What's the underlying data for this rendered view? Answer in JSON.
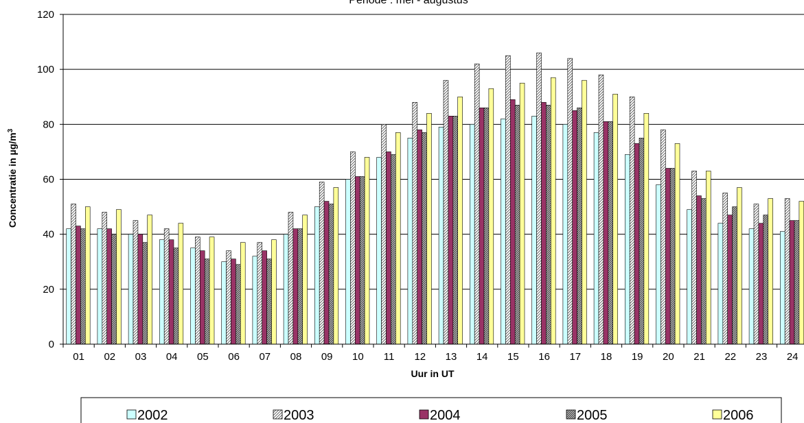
{
  "chart_data": {
    "type": "bar",
    "title": "Periode : mei - augustus",
    "xlabel": "Uur in UT",
    "ylabel": "Concentratie in µg/m",
    "ylabel_superscript": "3",
    "ylim": [
      0,
      120
    ],
    "yticks": [
      0,
      20,
      40,
      60,
      80,
      100,
      120
    ],
    "grid": "horizontal",
    "legend_position": "bottom",
    "categories": [
      "01",
      "02",
      "03",
      "04",
      "05",
      "06",
      "07",
      "08",
      "09",
      "10",
      "11",
      "12",
      "13",
      "14",
      "15",
      "16",
      "17",
      "18",
      "19",
      "20",
      "21",
      "22",
      "23",
      "24"
    ],
    "series": [
      {
        "name": "2002",
        "color": "#ccffff",
        "pattern": "solid",
        "values": [
          42,
          42,
          40,
          38,
          35,
          30,
          32,
          40,
          50,
          60,
          68,
          75,
          79,
          80,
          82,
          83,
          80,
          77,
          69,
          58,
          49,
          44,
          42,
          41
        ]
      },
      {
        "name": "2003",
        "color": "#ffffff",
        "pattern": "diagonal",
        "values": [
          51,
          48,
          45,
          42,
          39,
          34,
          37,
          48,
          59,
          70,
          80,
          88,
          96,
          102,
          105,
          106,
          104,
          98,
          90,
          78,
          63,
          55,
          51,
          53
        ]
      },
      {
        "name": "2004",
        "color": "#993366",
        "pattern": "solid",
        "values": [
          43,
          42,
          40,
          38,
          34,
          31,
          34,
          42,
          52,
          61,
          70,
          78,
          83,
          86,
          89,
          88,
          85,
          81,
          73,
          64,
          54,
          47,
          44,
          45
        ]
      },
      {
        "name": "2005",
        "color": "#808080",
        "pattern": "dense-diagonal",
        "values": [
          42,
          40,
          37,
          35,
          31,
          29,
          31,
          42,
          51,
          61,
          69,
          77,
          83,
          86,
          87,
          87,
          86,
          81,
          75,
          64,
          53,
          50,
          47,
          45
        ]
      },
      {
        "name": "2006",
        "color": "#ffff99",
        "pattern": "solid",
        "values": [
          50,
          49,
          47,
          44,
          39,
          37,
          38,
          47,
          57,
          68,
          77,
          84,
          90,
          93,
          95,
          97,
          96,
          91,
          84,
          73,
          63,
          57,
          53,
          52
        ]
      }
    ]
  }
}
